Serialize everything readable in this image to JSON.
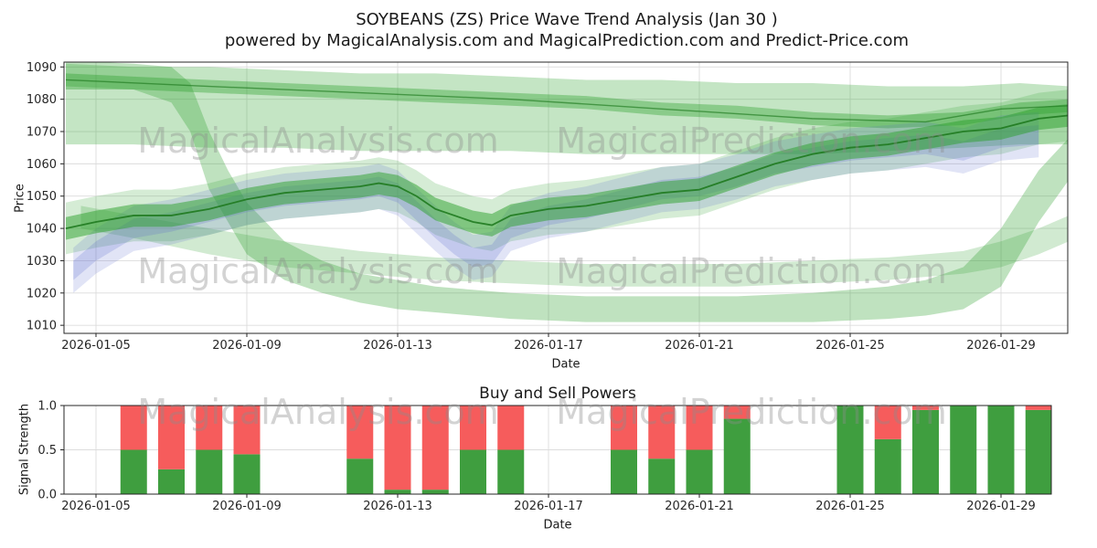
{
  "title": {
    "line1": "SOYBEANS (ZS) Price Wave Trend Analysis (Jan 30 )",
    "line2": "powered by MagicalAnalysis.com and MagicalPrediction.com and Predict-Price.com"
  },
  "watermarks": {
    "analysis": "MagicalAnalysis.com",
    "prediction": "MagicalPrediction.com"
  },
  "chart_data": [
    {
      "name": "price_wave_chart",
      "type": "area",
      "xlabel": "Date",
      "ylabel": "Price",
      "x_ticks": [
        "2026-01-05",
        "2026-01-09",
        "2026-01-13",
        "2026-01-17",
        "2026-01-21",
        "2026-01-25",
        "2026-01-29"
      ],
      "y_ticks": [
        1010,
        1020,
        1030,
        1040,
        1050,
        1060,
        1070,
        1080,
        1090
      ],
      "ylim": [
        1007.5,
        1091.5
      ],
      "grid": true,
      "bands": [
        {
          "name": "upper-outer-green-band",
          "color": "#2ca02c",
          "opacity": 0.28,
          "x": [
            4.2,
            6,
            8,
            10,
            12,
            14,
            16,
            18,
            20,
            22,
            24,
            26,
            28,
            29.5,
            30.8
          ],
          "upper": [
            1091,
            1090,
            1090,
            1089,
            1088,
            1088,
            1087,
            1086,
            1086,
            1085,
            1085,
            1084,
            1084,
            1085,
            1084
          ],
          "lower": [
            1066,
            1066,
            1065,
            1065,
            1064,
            1064,
            1064,
            1063,
            1063,
            1063,
            1063,
            1064,
            1065,
            1066,
            1066
          ]
        },
        {
          "name": "upper-inner-green-band",
          "color": "#2ca02c",
          "opacity": 0.38,
          "x": [
            4.2,
            6,
            8,
            10,
            12,
            14,
            16,
            18,
            20,
            22,
            24,
            26,
            28,
            29.5,
            30.8
          ],
          "upper": [
            1088,
            1087,
            1086,
            1085,
            1084,
            1083,
            1082,
            1081,
            1079,
            1078,
            1076,
            1075,
            1076,
            1079,
            1080
          ],
          "lower": [
            1083,
            1083,
            1082,
            1081,
            1080,
            1079,
            1078,
            1077,
            1075,
            1074,
            1072,
            1071,
            1072,
            1075,
            1076
          ]
        },
        {
          "name": "plunge-bottom-green-band",
          "color": "#2ca02c",
          "opacity": 0.3,
          "x": [
            4.2,
            6,
            7,
            7.5,
            8,
            8.5,
            9,
            10,
            11,
            12,
            13,
            14,
            16,
            18,
            20,
            22,
            24,
            26,
            27,
            28,
            29,
            30,
            30.8
          ],
          "upper": [
            1092,
            1091,
            1090,
            1085,
            1070,
            1058,
            1048,
            1036,
            1030,
            1026,
            1024,
            1022,
            1020,
            1019,
            1019,
            1019,
            1020,
            1022,
            1024,
            1028,
            1040,
            1058,
            1068
          ],
          "lower": [
            1084,
            1083,
            1079,
            1070,
            1052,
            1042,
            1032,
            1024,
            1020,
            1017,
            1015,
            1014,
            1012,
            1011,
            1011,
            1011,
            1011,
            1012,
            1013,
            1015,
            1022,
            1042,
            1055
          ]
        },
        {
          "name": "mid-low-green-band",
          "color": "#2ca02c",
          "opacity": 0.22,
          "x": [
            4.6,
            6,
            8,
            10,
            12,
            14,
            16,
            18,
            20,
            22,
            24,
            26,
            28,
            29,
            30,
            30.8
          ],
          "upper": [
            1047,
            1044,
            1040,
            1036,
            1033,
            1031,
            1030,
            1029,
            1029,
            1029,
            1030,
            1031,
            1033,
            1036,
            1040,
            1044
          ],
          "lower": [
            1040,
            1037,
            1032,
            1028,
            1026,
            1024,
            1023,
            1022,
            1022,
            1022,
            1023,
            1024,
            1026,
            1028,
            1032,
            1036
          ]
        },
        {
          "name": "main-trend-outer-green-band",
          "color": "#2ca02c",
          "opacity": 0.2,
          "x": [
            4.2,
            5,
            6,
            7,
            8,
            9,
            10,
            11,
            12,
            12.5,
            13,
            13.5,
            14,
            15,
            15.5,
            16,
            17,
            18,
            19,
            20,
            21,
            22,
            23,
            24,
            25,
            26,
            27,
            28,
            29,
            30,
            30.8
          ],
          "center": [
            1040,
            1042,
            1044,
            1044,
            1046,
            1049,
            1051,
            1052,
            1053,
            1054,
            1053,
            1050,
            1046,
            1042,
            1041,
            1044,
            1046,
            1047,
            1049,
            1051,
            1052,
            1056,
            1060,
            1063,
            1065,
            1066,
            1068,
            1070,
            1071,
            1074,
            1075
          ],
          "half_width": 8
        },
        {
          "name": "blue-outer-band",
          "color": "#5b6ace",
          "opacity": 0.18,
          "x": [
            4.4,
            5,
            6,
            7,
            8,
            9,
            10,
            11,
            12,
            12.5,
            13,
            14,
            14.5,
            15,
            15.5,
            16,
            17,
            18,
            19,
            20,
            21,
            22,
            23,
            24,
            25,
            26,
            27,
            28,
            29,
            30
          ],
          "center": [
            1027,
            1033,
            1040,
            1042,
            1045,
            1048,
            1050,
            1051,
            1052,
            1053,
            1051,
            1040,
            1035,
            1031,
            1032,
            1040,
            1044,
            1046,
            1049,
            1052,
            1053,
            1056,
            1060,
            1062,
            1064,
            1065,
            1066,
            1064,
            1068,
            1069
          ],
          "half_width": 7
        },
        {
          "name": "blue-inner-band",
          "color": "#5b6ace",
          "opacity": 0.22,
          "x": [
            4.4,
            5,
            6,
            7,
            8,
            9,
            10,
            11,
            12,
            12.5,
            13,
            14,
            14.5,
            15,
            15.5,
            16,
            17,
            18,
            19,
            20,
            21,
            22,
            23,
            24,
            25,
            26,
            27,
            28,
            29,
            30
          ],
          "center": [
            1027,
            1033,
            1040,
            1042,
            1045,
            1048,
            1050,
            1051,
            1052,
            1053,
            1051,
            1040,
            1035,
            1031,
            1032,
            1040,
            1044,
            1046,
            1049,
            1052,
            1053,
            1056,
            1060,
            1062,
            1064,
            1065,
            1066,
            1064,
            1068,
            1069
          ],
          "half_width": 3
        },
        {
          "name": "main-trend-inner-green-band",
          "color": "#2ca02c",
          "opacity": 0.5,
          "x": [
            4.2,
            5,
            6,
            7,
            8,
            9,
            10,
            11,
            12,
            12.5,
            13,
            13.5,
            14,
            15,
            15.5,
            16,
            17,
            18,
            19,
            20,
            21,
            22,
            23,
            24,
            25,
            26,
            27,
            28,
            29,
            30,
            30.8
          ],
          "center": [
            1040,
            1042,
            1044,
            1044,
            1046,
            1049,
            1051,
            1052,
            1053,
            1054,
            1053,
            1050,
            1046,
            1042,
            1041,
            1044,
            1046,
            1047,
            1049,
            1051,
            1052,
            1056,
            1060,
            1063,
            1065,
            1066,
            1068,
            1070,
            1071,
            1074,
            1075
          ],
          "half_width": 3.5
        }
      ],
      "lines": [
        {
          "name": "main-trend-center-line",
          "color": "#1f7a1f",
          "width": 1.8,
          "opacity": 0.9,
          "x": [
            4.2,
            5,
            6,
            7,
            8,
            9,
            10,
            11,
            12,
            12.5,
            13,
            13.5,
            14,
            15,
            15.5,
            16,
            17,
            18,
            19,
            20,
            21,
            22,
            23,
            24,
            25,
            26,
            27,
            28,
            29,
            30,
            30.8
          ],
          "y": [
            1040,
            1042,
            1044,
            1044,
            1046,
            1049,
            1051,
            1052,
            1053,
            1054,
            1053,
            1050,
            1046,
            1042,
            1041,
            1044,
            1046,
            1047,
            1049,
            1051,
            1052,
            1056,
            1060,
            1063,
            1065,
            1066,
            1068,
            1070,
            1071,
            1074,
            1075
          ]
        },
        {
          "name": "upper-trend-center-line",
          "color": "#1f7a1f",
          "width": 1.4,
          "opacity": 0.65,
          "x": [
            4.2,
            8,
            12,
            16,
            20,
            24,
            27,
            29,
            30.8
          ],
          "y": [
            1086,
            1084,
            1082,
            1080,
            1077,
            1074,
            1073,
            1077,
            1078
          ]
        }
      ]
    },
    {
      "name": "buy_sell_powers_chart",
      "type": "bar",
      "title": "Buy and Sell Powers",
      "xlabel": "Date",
      "ylabel": "Signal Strength",
      "x_ticks": [
        "2026-01-05",
        "2026-01-09",
        "2026-01-13",
        "2026-01-17",
        "2026-01-21",
        "2026-01-25",
        "2026-01-29"
      ],
      "y_ticks": [
        "0.0",
        "0.5",
        "1.0"
      ],
      "ylim": [
        0,
        1.0
      ],
      "stacked": true,
      "series_colors": {
        "buy": "#3f9e3f",
        "sell": "#f65c5c"
      },
      "bars": [
        {
          "date": "2026-01-06",
          "buy": 0.5,
          "sell": 0.5
        },
        {
          "date": "2026-01-07",
          "buy": 0.28,
          "sell": 0.72
        },
        {
          "date": "2026-01-08",
          "buy": 0.5,
          "sell": 0.5
        },
        {
          "date": "2026-01-09",
          "buy": 0.45,
          "sell": 0.55
        },
        {
          "date": "2026-01-12",
          "buy": 0.4,
          "sell": 0.6
        },
        {
          "date": "2026-01-13",
          "buy": 0.05,
          "sell": 0.95
        },
        {
          "date": "2026-01-14",
          "buy": 0.05,
          "sell": 0.95
        },
        {
          "date": "2026-01-15",
          "buy": 0.5,
          "sell": 0.5
        },
        {
          "date": "2026-01-16",
          "buy": 0.5,
          "sell": 0.5
        },
        {
          "date": "2026-01-19",
          "buy": 0.5,
          "sell": 0.5
        },
        {
          "date": "2026-01-20",
          "buy": 0.4,
          "sell": 0.6
        },
        {
          "date": "2026-01-21",
          "buy": 0.5,
          "sell": 0.5
        },
        {
          "date": "2026-01-22",
          "buy": 0.85,
          "sell": 0.15
        },
        {
          "date": "2026-01-25",
          "buy": 1.0,
          "sell": 0.0
        },
        {
          "date": "2026-01-26",
          "buy": 0.62,
          "sell": 0.38
        },
        {
          "date": "2026-01-27",
          "buy": 0.95,
          "sell": 0.05
        },
        {
          "date": "2026-01-28",
          "buy": 1.0,
          "sell": 0.0
        },
        {
          "date": "2026-01-29",
          "buy": 1.0,
          "sell": 0.0
        },
        {
          "date": "2026-01-30",
          "buy": 0.95,
          "sell": 0.05
        }
      ]
    }
  ]
}
